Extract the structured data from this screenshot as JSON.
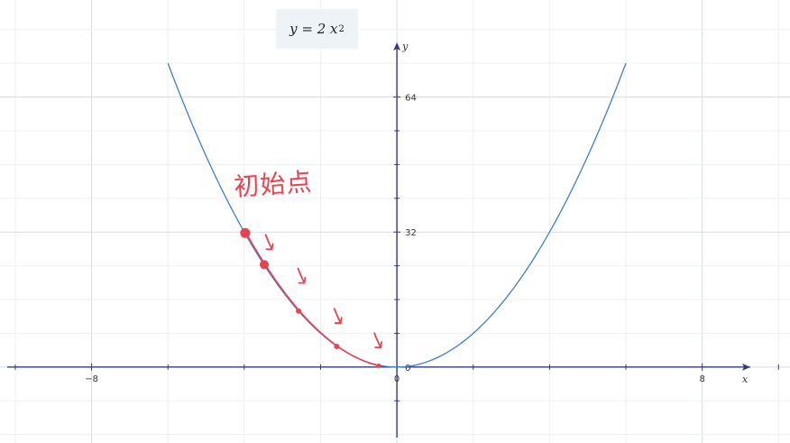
{
  "formula": {
    "lhs": "y = 2 x",
    "exponent": "2"
  },
  "annotation": {
    "text": "初始点"
  },
  "colors": {
    "curve": "#3f7fd0",
    "axis": "#2f3d7a",
    "grid_major": "#d7dce8",
    "grid_minor": "#eceff5",
    "annotation": "#e8434f"
  },
  "chart_data": {
    "type": "line",
    "title": "",
    "function": "y = 2x^2",
    "xlabel": "x",
    "ylabel": "y",
    "xlim": [
      -10.4,
      10.3
    ],
    "ylim": [
      -18,
      87
    ],
    "x_tick_labels": [
      {
        "value": -8,
        "label": "−8"
      },
      {
        "value": 0,
        "label": "0"
      },
      {
        "value": 8,
        "label": "8"
      }
    ],
    "y_tick_labels": [
      {
        "value": 0,
        "label": "0"
      },
      {
        "value": 32,
        "label": "32"
      },
      {
        "value": 64,
        "label": "64"
      }
    ],
    "x_minor_ticks": [
      -10,
      -6,
      -4,
      -2,
      2,
      4,
      6,
      10
    ],
    "y_minor_ticks": [
      -8,
      8,
      16,
      24,
      40,
      48,
      56
    ],
    "grid": true,
    "series": [
      {
        "x": [
          -6,
          -5.5,
          -5,
          -4.5,
          -4,
          -3.5,
          -3,
          -2.5,
          -2,
          -1.5,
          -1,
          -0.5,
          0,
          0.5,
          1,
          1.5,
          2,
          2.5,
          3,
          3.5,
          4,
          4.5,
          5,
          5.5,
          6
        ],
        "y": [
          72,
          60.5,
          50,
          40.5,
          32,
          24.5,
          18,
          12.5,
          8,
          4.5,
          2,
          0.5,
          0,
          0.5,
          2,
          4.5,
          8,
          12.5,
          18,
          24.5,
          32,
          40.5,
          50,
          60.5,
          72
        ]
      }
    ],
    "descent_path": {
      "points": [
        {
          "x": -4,
          "y": 32
        },
        {
          "x": -3.5,
          "y": 24.5
        },
        {
          "x": -2.6,
          "y": 13.5
        },
        {
          "x": -1.6,
          "y": 5.1
        },
        {
          "x": -0.5,
          "y": 0.5
        }
      ]
    }
  }
}
